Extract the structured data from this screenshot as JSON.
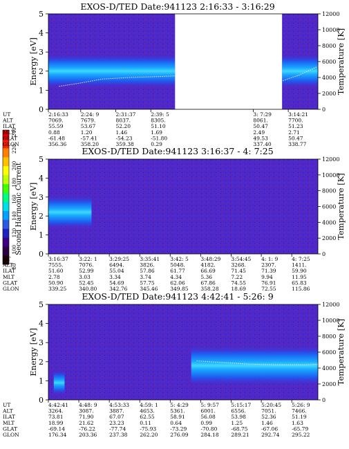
{
  "colorbar": {
    "label": "Second Harmonic Current",
    "ticks": [
      "240",
      "220",
      "200",
      "180",
      "160",
      "140",
      "120",
      "100",
      "80"
    ],
    "colors": [
      "#1a0000",
      "#2a0040",
      "#3a0080",
      "#2020c0",
      "#2a5ae0",
      "#00a0ff",
      "#00e0e0",
      "#00ff80",
      "#40ff00",
      "#c0ff00",
      "#ffff00",
      "#ffc000",
      "#ff8000",
      "#ff2000",
      "#e00000"
    ]
  },
  "chart_data": [
    {
      "type": "heatmap",
      "title": "EXOS-D/TED",
      "date_label": "Date:941123",
      "time_range": "2:16:33 - 3:16:29",
      "ylabel": "Energy [eV]",
      "ylabel_right": "Temperature [K]",
      "ylim": [
        0,
        5
      ],
      "ylim_right": [
        0,
        12000
      ],
      "yticks": [
        "0",
        "1",
        "2",
        "3",
        "4",
        "5"
      ],
      "yticks_right": [
        "0",
        "2000",
        "4000",
        "6000",
        "8000",
        "10000",
        "12000"
      ],
      "data_gap": [
        0.47,
        0.867
      ],
      "band": {
        "segments": [
          [
            0.0,
            0.47,
            2.0,
            0.55
          ],
          [
            0.867,
            1.0,
            2.0,
            0.55
          ]
        ]
      },
      "temperature_trace": [
        [
          0.04,
          2900
        ],
        [
          0.1,
          3200
        ],
        [
          0.2,
          3800
        ],
        [
          0.3,
          4000
        ],
        [
          0.4,
          4100
        ],
        [
          0.47,
          4200
        ],
        [
          0.87,
          3600
        ],
        [
          0.93,
          4300
        ],
        [
          1.0,
          5400
        ]
      ],
      "row_labels": [
        "UT",
        "ALT",
        "ILAT",
        "MLT",
        "GLAT",
        "GLON"
      ],
      "columns": [
        {
          "pos": 0.0,
          "values": [
            "2:16:33",
            "7069.",
            "55.59",
            "0.88",
            "-61.48",
            "356.36"
          ]
        },
        {
          "pos": 0.12,
          "values": [
            "2:24: 9",
            "7679.",
            "53.67",
            "1.20",
            "-57.41",
            "358.20"
          ]
        },
        {
          "pos": 0.25,
          "values": [
            "2:31:37",
            "8037.",
            "52.20",
            "1.46",
            "-54.23",
            "359.38"
          ]
        },
        {
          "pos": 0.38,
          "values": [
            "2:39: 5",
            "8305.",
            "51.10",
            "1.69",
            "-51.80",
            "0.29"
          ]
        },
        {
          "pos": 0.76,
          "values": [
            "3: 7:29",
            "8061.",
            "50.47",
            "2.49",
            "49.53",
            "337.40"
          ]
        },
        {
          "pos": 0.89,
          "values": [
            "3:14:21",
            "7700.",
            "51.23",
            "2.71",
            "50.47",
            "338.77"
          ]
        }
      ]
    },
    {
      "type": "heatmap",
      "title": "EXOS-D/TED",
      "date_label": "Date:941123",
      "time_range": "3:16:37 - 4: 7:25",
      "ylabel": "Energy [eV]",
      "ylabel_right": "Temperature [K]",
      "ylim": [
        0,
        5
      ],
      "ylim_right": [
        0,
        12000
      ],
      "yticks": [
        "0",
        "1",
        "2",
        "3",
        "4",
        "5"
      ],
      "yticks_right": [
        "0",
        "2000",
        "4000",
        "6000",
        "8000",
        "10000",
        "12000"
      ],
      "data_gap": null,
      "band": {
        "segments": [
          [
            0.0,
            0.16,
            2.2,
            0.55
          ]
        ]
      },
      "temperature_trace": [],
      "row_labels": [
        "UT",
        "ALT",
        "ILAT",
        "MLT",
        "GLAT",
        "GLON"
      ],
      "columns": [
        {
          "pos": 0.0,
          "values": [
            "3:16:37",
            "7555.",
            "51.60",
            "2.78",
            "50.90",
            "339.25"
          ]
        },
        {
          "pos": 0.113,
          "values": [
            "3:22: 1",
            "7076.",
            "52.99",
            "3.03",
            "52.45",
            "340.80"
          ]
        },
        {
          "pos": 0.226,
          "values": [
            "3:29:25",
            "6494.",
            "55.04",
            "3.34",
            "54.69",
            "342.76"
          ]
        },
        {
          "pos": 0.339,
          "values": [
            "3:35:41",
            "3826.",
            "57.86",
            "3.74",
            "57.75",
            "345.46"
          ]
        },
        {
          "pos": 0.452,
          "values": [
            "3:42: 5",
            "5048.",
            "61.77",
            "4.34",
            "62.06",
            "349.85"
          ]
        },
        {
          "pos": 0.565,
          "values": [
            "3:48:29",
            "4182.",
            "66.69",
            "5.36",
            "67.86",
            "358.28"
          ]
        },
        {
          "pos": 0.678,
          "values": [
            "3:54:45",
            "3268.",
            "71.45",
            "7.22",
            "74.55",
            "18.69"
          ]
        },
        {
          "pos": 0.79,
          "values": [
            "4: 1: 9",
            "2307.",
            "71.39",
            "9.94",
            "76.91",
            "72.55"
          ]
        },
        {
          "pos": 0.903,
          "values": [
            "4: 7:25",
            "1411.",
            "59.90",
            "11.95",
            "65.83",
            "115.86"
          ]
        }
      ]
    },
    {
      "type": "heatmap",
      "title": "EXOS-D/TED",
      "date_label": "Date:941123",
      "time_range": "4:42:41 - 5:26: 9",
      "ylabel": "Energy [eV]",
      "ylabel_right": "Temperature [K]",
      "ylim": [
        0,
        5
      ],
      "ylim_right": [
        0,
        12000
      ],
      "yticks": [
        "0",
        "1",
        "2",
        "3",
        "4",
        "5"
      ],
      "yticks_right": [
        "0",
        "2000",
        "4000",
        "6000",
        "8000",
        "10000",
        "12000"
      ],
      "data_gap": null,
      "band": {
        "segments": [
          [
            0.02,
            0.06,
            0.9,
            0.4
          ],
          [
            0.53,
            1.0,
            1.8,
            0.65
          ]
        ]
      },
      "temperature_trace": [
        [
          0.55,
          4900
        ],
        [
          0.65,
          4700
        ],
        [
          0.75,
          4500
        ],
        [
          0.85,
          4400
        ],
        [
          0.95,
          4400
        ],
        [
          1.0,
          4500
        ]
      ],
      "row_labels": [
        "UT",
        "ALT",
        "ILAT",
        "MLT",
        "GLAT",
        "GLON"
      ],
      "columns": [
        {
          "pos": 0.0,
          "values": [
            "4:42:41",
            "3264.",
            "73.81",
            "18.99",
            "-69.14",
            "176.34"
          ]
        },
        {
          "pos": 0.113,
          "values": [
            "4:48: 9",
            "3087.",
            "71.90",
            "21.62",
            "-76.22",
            "203.36"
          ]
        },
        {
          "pos": 0.226,
          "values": [
            "4:53:33",
            "3887.",
            "67.07",
            "23.23",
            "-77.74",
            "237.38"
          ]
        },
        {
          "pos": 0.339,
          "values": [
            "4:59: 1",
            "4653.",
            "62.55",
            "0.11",
            "-75.93",
            "262.20"
          ]
        },
        {
          "pos": 0.452,
          "values": [
            "5: 4:29",
            "5361.",
            "58.91",
            "0.64",
            "-73.29",
            "276.09"
          ]
        },
        {
          "pos": 0.565,
          "values": [
            "5: 9:57",
            "6001.",
            "56.08",
            "0.99",
            "-70.80",
            "284.18"
          ]
        },
        {
          "pos": 0.678,
          "values": [
            "5:15:17",
            "6556.",
            "53.98",
            "1.25",
            "-68.75",
            "289.21"
          ]
        },
        {
          "pos": 0.79,
          "values": [
            "5:20:45",
            "7051.",
            "52.36",
            "1.46",
            "-67.06",
            "292.74"
          ]
        },
        {
          "pos": 0.903,
          "values": [
            "5:26: 9",
            "7466.",
            "51.19",
            "1.63",
            "-65.79",
            "295.22"
          ]
        }
      ]
    }
  ]
}
